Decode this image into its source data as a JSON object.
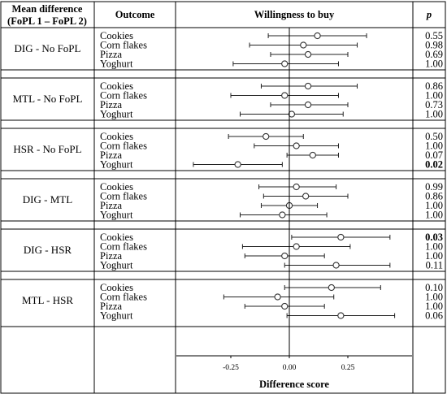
{
  "header": {
    "col1_line1": "Mean difference",
    "col1_line2": "(FoPL 1 – FoPL 2)",
    "col2": "Outcome",
    "col3": "Willingness to buy",
    "col4": "p"
  },
  "chart_data": {
    "type": "forest",
    "title": "Willingness to buy",
    "xlabel": "Difference score",
    "xlim": [
      -0.5,
      0.6
    ],
    "xticks": [
      -0.25,
      0.0,
      0.25
    ],
    "xtick_labels": [
      "-0.25",
      "0.00",
      "0.25"
    ],
    "reference_line": 0.0,
    "groups": [
      {
        "label": "DIG - No FoPL",
        "rows": [
          {
            "outcome": "Cookies",
            "estimate": 0.12,
            "lower": -0.09,
            "upper": 0.33,
            "p": "0.55",
            "significant": false
          },
          {
            "outcome": "Corn flakes",
            "estimate": 0.06,
            "lower": -0.17,
            "upper": 0.29,
            "p": "0.98",
            "significant": false
          },
          {
            "outcome": "Pizza",
            "estimate": 0.08,
            "lower": -0.08,
            "upper": 0.25,
            "p": "0.69",
            "significant": false
          },
          {
            "outcome": "Yoghurt",
            "estimate": -0.02,
            "lower": -0.24,
            "upper": 0.21,
            "p": "1.00",
            "significant": false
          }
        ]
      },
      {
        "label": "MTL - No FoPL",
        "rows": [
          {
            "outcome": "Cookies",
            "estimate": 0.08,
            "lower": -0.12,
            "upper": 0.29,
            "p": "0.86",
            "significant": false
          },
          {
            "outcome": "Corn flakes",
            "estimate": -0.02,
            "lower": -0.25,
            "upper": 0.21,
            "p": "1.00",
            "significant": false
          },
          {
            "outcome": "Pizza",
            "estimate": 0.08,
            "lower": -0.08,
            "upper": 0.25,
            "p": "0.73",
            "significant": false
          },
          {
            "outcome": "Yoghurt",
            "estimate": 0.01,
            "lower": -0.21,
            "upper": 0.23,
            "p": "1.00",
            "significant": false
          }
        ]
      },
      {
        "label": "HSR - No FoPL",
        "rows": [
          {
            "outcome": "Cookies",
            "estimate": -0.1,
            "lower": -0.26,
            "upper": 0.06,
            "p": "0.50",
            "significant": false
          },
          {
            "outcome": "Corn flakes",
            "estimate": 0.03,
            "lower": -0.15,
            "upper": 0.21,
            "p": "1.00",
            "significant": false
          },
          {
            "outcome": "Pizza",
            "estimate": 0.1,
            "lower": -0.01,
            "upper": 0.21,
            "p": "0.07",
            "significant": false
          },
          {
            "outcome": "Yoghurt",
            "estimate": -0.22,
            "lower": -0.41,
            "upper": -0.03,
            "p": "0.02",
            "significant": true
          }
        ]
      },
      {
        "label": "DIG - MTL",
        "rows": [
          {
            "outcome": "Cookies",
            "estimate": 0.03,
            "lower": -0.13,
            "upper": 0.2,
            "p": "0.99",
            "significant": false
          },
          {
            "outcome": "Corn flakes",
            "estimate": 0.07,
            "lower": -0.11,
            "upper": 0.25,
            "p": "0.86",
            "significant": false
          },
          {
            "outcome": "Pizza",
            "estimate": 0.0,
            "lower": -0.12,
            "upper": 0.12,
            "p": "1.00",
            "significant": false
          },
          {
            "outcome": "Yoghurt",
            "estimate": -0.03,
            "lower": -0.21,
            "upper": 0.16,
            "p": "1.00",
            "significant": false
          }
        ]
      },
      {
        "label": "DIG - HSR",
        "rows": [
          {
            "outcome": "Cookies",
            "estimate": 0.22,
            "lower": 0.01,
            "upper": 0.43,
            "p": "0.03",
            "significant": true
          },
          {
            "outcome": "Corn flakes",
            "estimate": 0.03,
            "lower": -0.2,
            "upper": 0.26,
            "p": "1.00",
            "significant": false
          },
          {
            "outcome": "Pizza",
            "estimate": -0.02,
            "lower": -0.19,
            "upper": 0.15,
            "p": "1.00",
            "significant": false
          },
          {
            "outcome": "Yoghurt",
            "estimate": 0.2,
            "lower": -0.02,
            "upper": 0.43,
            "p": "0.11",
            "significant": false
          }
        ]
      },
      {
        "label": "MTL - HSR",
        "rows": [
          {
            "outcome": "Cookies",
            "estimate": 0.18,
            "lower": -0.02,
            "upper": 0.39,
            "p": "0.10",
            "significant": false
          },
          {
            "outcome": "Corn flakes",
            "estimate": -0.05,
            "lower": -0.28,
            "upper": 0.19,
            "p": "1.00",
            "significant": false
          },
          {
            "outcome": "Pizza",
            "estimate": -0.02,
            "lower": -0.19,
            "upper": 0.15,
            "p": "1.00",
            "significant": false
          },
          {
            "outcome": "Yoghurt",
            "estimate": 0.22,
            "lower": -0.01,
            "upper": 0.45,
            "p": "0.06",
            "significant": false
          }
        ]
      }
    ]
  }
}
